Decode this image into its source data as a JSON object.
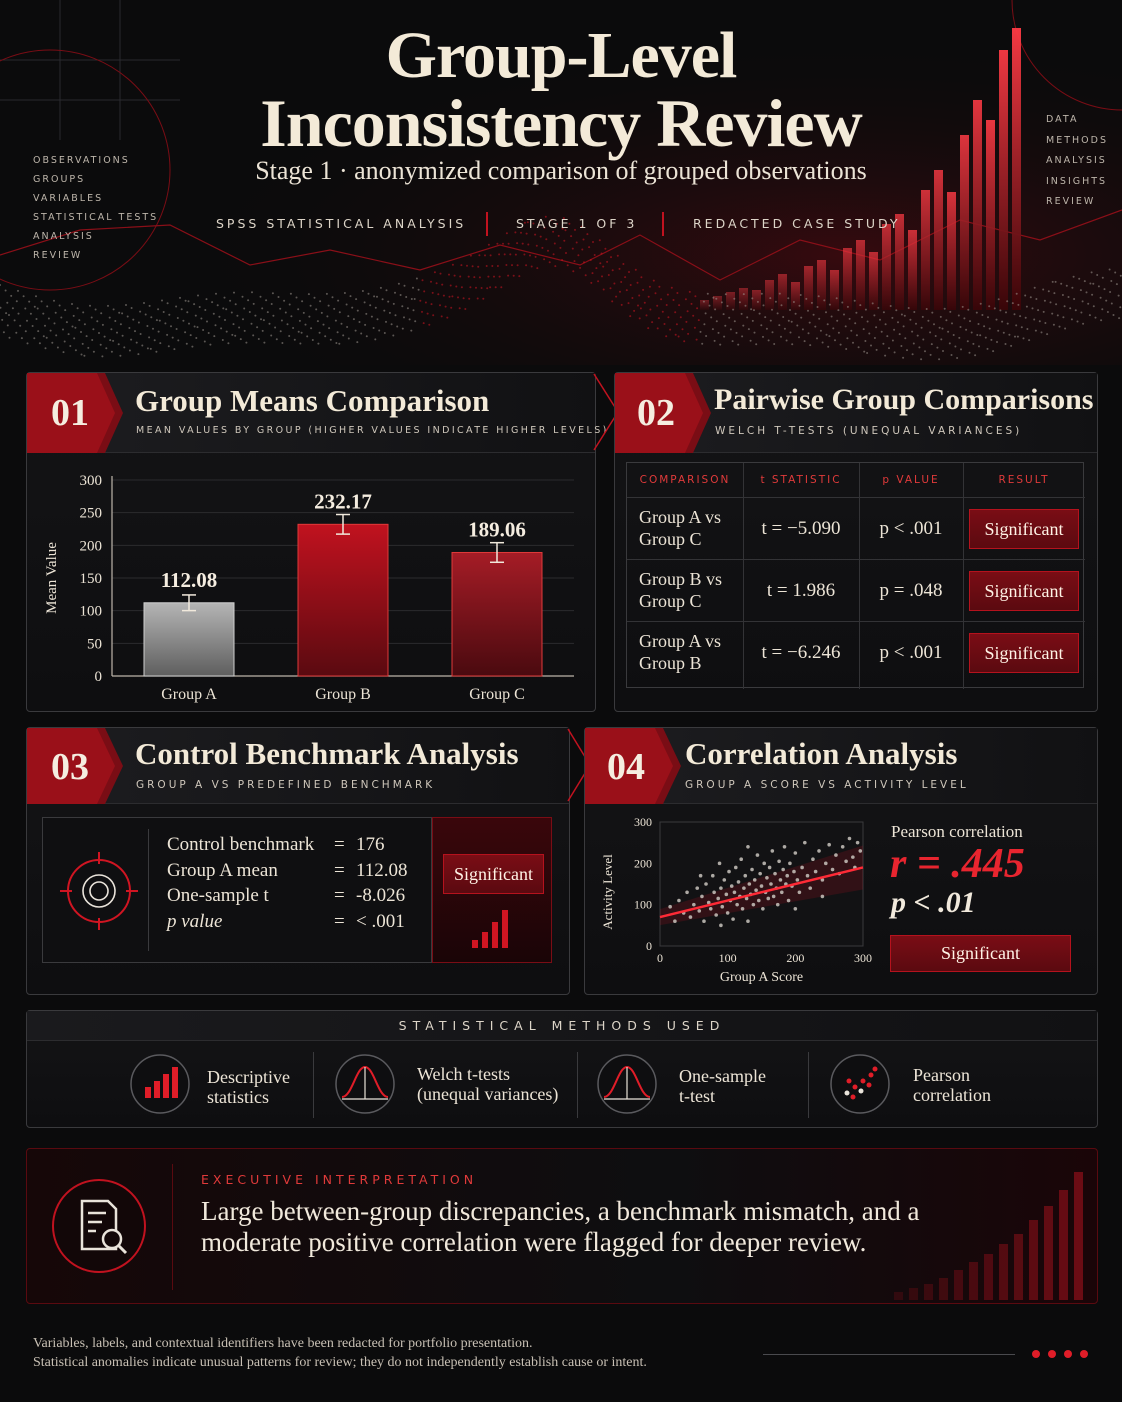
{
  "header": {
    "title_line1": "Group-Level",
    "title_line2": "Inconsistency Review",
    "subtitle": "Stage 1 · anonymized comparison of grouped observations",
    "tags": [
      "SPSS STATISTICAL ANALYSIS",
      "STAGE 1 OF 3",
      "REDACTED CASE STUDY"
    ],
    "left_list": [
      "OBSERVATIONS",
      "GROUPS",
      "VARIABLES",
      "STATISTICAL TESTS",
      "ANALYSIS",
      "REVIEW"
    ],
    "right_list": [
      "DATA",
      "METHODS",
      "ANALYSIS",
      "INSIGHTS",
      "REVIEW"
    ]
  },
  "panel1": {
    "number": "01",
    "title": "Group Means Comparison",
    "subtitle": "MEAN VALUES BY GROUP (HIGHER VALUES INDICATE HIGHER LEVELS)"
  },
  "panel2": {
    "number": "02",
    "title": "Pairwise Group Comparisons",
    "subtitle": "WELCH T-TESTS (UNEQUAL VARIANCES)",
    "headers": [
      "COMPARISON",
      "t STATISTIC",
      "p VALUE",
      "RESULT"
    ],
    "rows": [
      {
        "comp_line1": "Group A vs",
        "comp_line2": "Group C",
        "t": "t = −5.090",
        "p": "p < .001",
        "result": "Significant"
      },
      {
        "comp_line1": "Group B vs",
        "comp_line2": "Group C",
        "t": "t = 1.986",
        "p": "p = .048",
        "result": "Significant"
      },
      {
        "comp_line1": "Group A vs",
        "comp_line2": "Group B",
        "t": "t = −6.246",
        "p": "p < .001",
        "result": "Significant"
      }
    ]
  },
  "panel3": {
    "number": "03",
    "title": "Control Benchmark Analysis",
    "subtitle": "GROUP A VS PREDEFINED BENCHMARK",
    "rows": [
      {
        "label": "Control benchmark",
        "eq": "=",
        "value": "176"
      },
      {
        "label": "Group A mean",
        "eq": "=",
        "value": "112.08"
      },
      {
        "label": "One-sample  t",
        "eq": "=",
        "value": "-8.026"
      },
      {
        "label": "p value",
        "eq": "=",
        "value": "< .001"
      }
    ],
    "result": "Significant",
    "icons": [
      "target-icon",
      "bar-chart-icon"
    ]
  },
  "panel4": {
    "number": "04",
    "title": "Correlation Analysis",
    "subtitle": "GROUP A SCORE VS ACTIVITY LEVEL",
    "stat_label": "Pearson correlation",
    "r_text": "r = .445",
    "p_text": "p < .01",
    "result": "Significant"
  },
  "methods": {
    "heading": "STATISTICAL METHODS USED",
    "items": [
      {
        "line1": "Descriptive",
        "line2": "statistics",
        "icon": "bar-chart-icon"
      },
      {
        "line1": "Welch t-tests",
        "line2": "(unequal variances)",
        "icon": "bell-curve-icon"
      },
      {
        "line1": "One-sample",
        "line2": "t-test",
        "icon": "bell-curve-icon"
      },
      {
        "line1": "Pearson",
        "line2": "correlation",
        "icon": "scatter-icon"
      }
    ]
  },
  "executive": {
    "kicker": "EXECUTIVE INTERPRETATION",
    "text": "Large between-group discrepancies, a benchmark mismatch, and a moderate positive correlation were flagged for deeper review.",
    "icon": "document-search-icon"
  },
  "footer": {
    "line1": "Variables, labels, and contextual identifiers have been redacted for portfolio presentation.",
    "line2": "Statistical anomalies indicate unusual patterns for review; they do not independently establish cause or intent."
  },
  "colors": {
    "accent": "#c1121f",
    "accent_bright": "#e8252f",
    "bar_a": "#8f8f8f",
    "bar_b": "#a0121c",
    "bar_c": "#8a1c24",
    "background": "#0b0b0c"
  },
  "chart_data": [
    {
      "type": "bar",
      "categories": [
        "Group A",
        "Group B",
        "Group C"
      ],
      "values": [
        112.08,
        232.17,
        189.06
      ],
      "value_labels": [
        "112.08",
        "232.17",
        "189.06"
      ],
      "error_bars": [
        12,
        15,
        15
      ],
      "ylabel": "Mean Value",
      "xlabel": "",
      "ylim": [
        0,
        300
      ],
      "yticks": [
        0,
        50,
        100,
        150,
        200,
        250,
        300
      ],
      "grid": true
    },
    {
      "type": "scatter",
      "xlabel": "Group A Score",
      "ylabel": "Activity Level",
      "xlim": [
        0,
        300
      ],
      "ylim": [
        0,
        300
      ],
      "xticks": [
        0,
        100,
        200,
        300
      ],
      "yticks": [
        0,
        100,
        200,
        300
      ],
      "trend_line": {
        "x": [
          0,
          300
        ],
        "y": [
          70,
          190
        ]
      },
      "points": [
        [
          15,
          95
        ],
        [
          22,
          60
        ],
        [
          28,
          110
        ],
        [
          35,
          80
        ],
        [
          40,
          130
        ],
        [
          45,
          70
        ],
        [
          50,
          100
        ],
        [
          55,
          140
        ],
        [
          58,
          85
        ],
        [
          62,
          120
        ],
        [
          65,
          60
        ],
        [
          68,
          150
        ],
        [
          72,
          105
        ],
        [
          75,
          90
        ],
        [
          78,
          170
        ],
        [
          80,
          130
        ],
        [
          83,
          75
        ],
        [
          86,
          115
        ],
        [
          88,
          200
        ],
        [
          90,
          140
        ],
        [
          92,
          95
        ],
        [
          95,
          160
        ],
        [
          98,
          125
        ],
        [
          100,
          80
        ],
        [
          102,
          180
        ],
        [
          104,
          110
        ],
        [
          106,
          145
        ],
        [
          108,
          65
        ],
        [
          110,
          130
        ],
        [
          112,
          190
        ],
        [
          114,
          100
        ],
        [
          116,
          155
        ],
        [
          118,
          120
        ],
        [
          120,
          210
        ],
        [
          122,
          90
        ],
        [
          124,
          140
        ],
        [
          126,
          170
        ],
        [
          128,
          115
        ],
        [
          130,
          60
        ],
        [
          132,
          150
        ],
        [
          134,
          125
        ],
        [
          136,
          185
        ],
        [
          138,
          100
        ],
        [
          140,
          160
        ],
        [
          142,
          135
        ],
        [
          144,
          220
        ],
        [
          146,
          110
        ],
        [
          148,
          175
        ],
        [
          150,
          145
        ],
        [
          152,
          90
        ],
        [
          154,
          200
        ],
        [
          156,
          130
        ],
        [
          158,
          165
        ],
        [
          160,
          115
        ],
        [
          162,
          190
        ],
        [
          164,
          150
        ],
        [
          166,
          230
        ],
        [
          168,
          120
        ],
        [
          170,
          175
        ],
        [
          172,
          140
        ],
        [
          174,
          100
        ],
        [
          176,
          205
        ],
        [
          178,
          160
        ],
        [
          180,
          130
        ],
        [
          182,
          185
        ],
        [
          184,
          240
        ],
        [
          186,
          150
        ],
        [
          188,
          170
        ],
        [
          190,
          110
        ],
        [
          192,
          200
        ],
        [
          195,
          145
        ],
        [
          198,
          180
        ],
        [
          200,
          225
        ],
        [
          203,
          160
        ],
        [
          206,
          130
        ],
        [
          210,
          190
        ],
        [
          214,
          250
        ],
        [
          218,
          170
        ],
        [
          222,
          140
        ],
        [
          226,
          210
        ],
        [
          230,
          180
        ],
        [
          235,
          230
        ],
        [
          240,
          160
        ],
        [
          245,
          200
        ],
        [
          250,
          245
        ],
        [
          255,
          185
        ],
        [
          260,
          220
        ],
        [
          265,
          175
        ],
        [
          270,
          240
        ],
        [
          275,
          205
        ],
        [
          280,
          260
        ],
        [
          285,
          215
        ],
        [
          288,
          190
        ],
        [
          292,
          250
        ],
        [
          296,
          230
        ],
        [
          130,
          240
        ],
        [
          60,
          170
        ],
        [
          200,
          90
        ],
        [
          240,
          120
        ],
        [
          90,
          50
        ]
      ],
      "annotations": [
        "Pearson correlation",
        "r = .445",
        "p < .01"
      ]
    }
  ]
}
